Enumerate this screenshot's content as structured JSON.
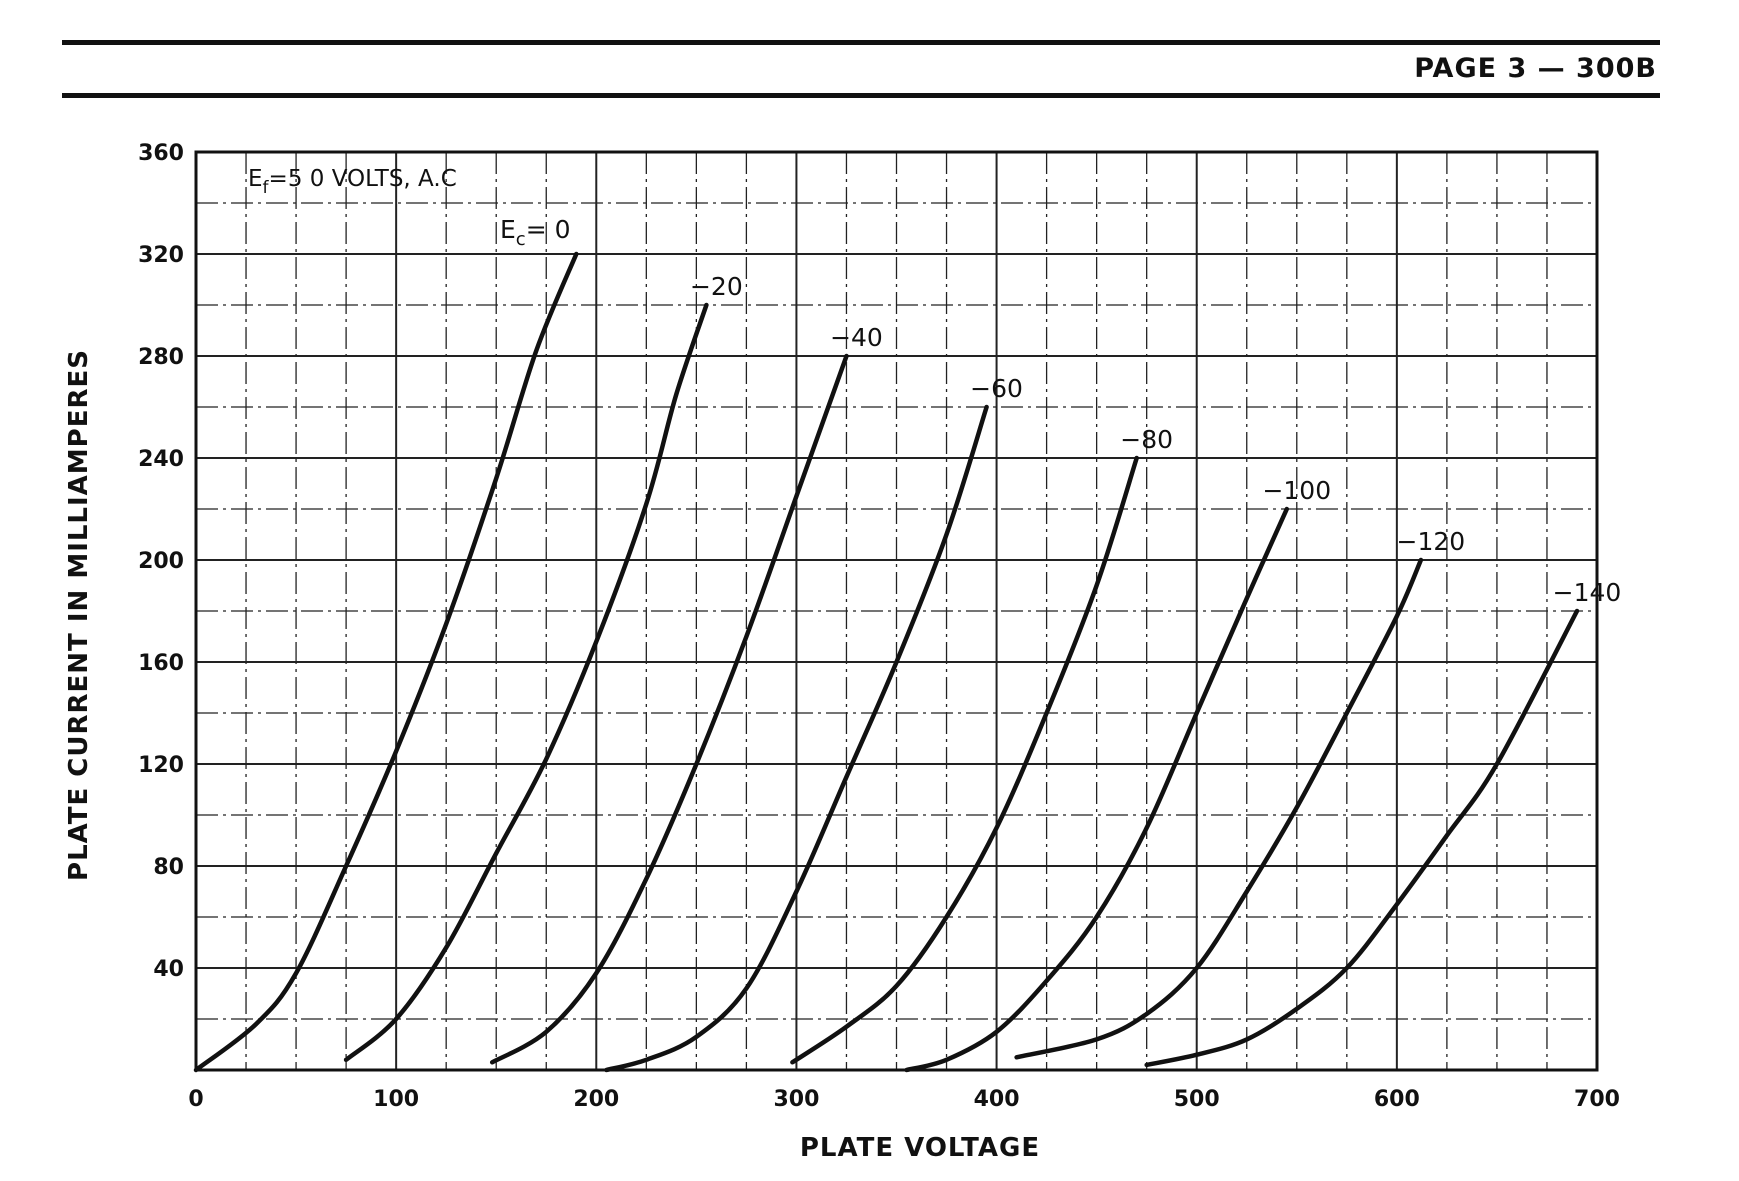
{
  "header": {
    "page_label": "PAGE 3 — 300B"
  },
  "chart_data": {
    "type": "line",
    "title": "",
    "xlabel": "PLATE VOLTAGE",
    "ylabel": "PLATE CURRENT IN MILLIAMPERES",
    "xlim": [
      0,
      700
    ],
    "ylim": [
      0,
      360
    ],
    "x_ticks": [
      0,
      100,
      200,
      300,
      400,
      500,
      600,
      700
    ],
    "y_ticks": [
      40,
      80,
      120,
      160,
      200,
      240,
      280,
      320,
      360
    ],
    "grid": true,
    "annotations": {
      "filament_prefix": "E",
      "filament_sub": "f",
      "filament_rest": "=5 0  VOLTS, A.C",
      "grid_prefix": "E",
      "grid_sub": "c",
      "grid_rest": "= 0"
    },
    "series": [
      {
        "label": "= 0",
        "x": [
          0,
          30,
          50,
          75,
          100,
          125,
          150,
          170,
          190
        ],
        "y": [
          0,
          18,
          38,
          80,
          125,
          175,
          232,
          282,
          320
        ]
      },
      {
        "label": "−20",
        "x": [
          75,
          100,
          125,
          150,
          175,
          200,
          225,
          240,
          255
        ],
        "y": [
          4,
          20,
          48,
          85,
          122,
          168,
          222,
          265,
          300
        ]
      },
      {
        "label": "−40",
        "x": [
          148,
          175,
          200,
          225,
          250,
          275,
          300,
          325
        ],
        "y": [
          3,
          15,
          38,
          75,
          120,
          170,
          225,
          280
        ]
      },
      {
        "label": "−60",
        "x": [
          205,
          225,
          250,
          275,
          300,
          325,
          350,
          375,
          395
        ],
        "y": [
          0,
          4,
          13,
          32,
          70,
          115,
          160,
          210,
          260
        ]
      },
      {
        "label": "−80",
        "x": [
          298,
          325,
          350,
          375,
          400,
          425,
          450,
          470
        ],
        "y": [
          3,
          17,
          33,
          60,
          95,
          140,
          190,
          240
        ]
      },
      {
        "label": "−100",
        "x": [
          355,
          375,
          400,
          425,
          450,
          475,
          500,
          525,
          545
        ],
        "y": [
          0,
          4,
          15,
          35,
          60,
          95,
          140,
          185,
          220
        ]
      },
      {
        "label": "−120",
        "x": [
          410,
          450,
          475,
          500,
          525,
          550,
          575,
          600,
          612
        ],
        "y": [
          5,
          12,
          22,
          40,
          70,
          103,
          140,
          178,
          200
        ]
      },
      {
        "label": "−140",
        "x": [
          475,
          500,
          525,
          550,
          575,
          600,
          625,
          650,
          690
        ],
        "y": [
          2,
          6,
          12,
          24,
          40,
          65,
          92,
          120,
          180
        ]
      }
    ]
  }
}
